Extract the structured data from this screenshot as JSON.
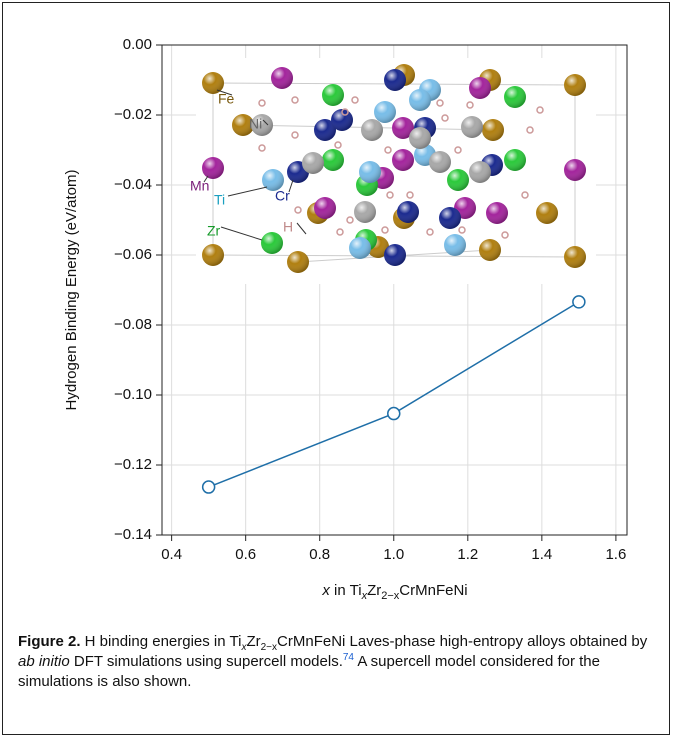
{
  "chart_data": {
    "type": "line",
    "ylabel": "Hydrogen Binding Energy (eV/atom)",
    "xlabel_parts": [
      "x",
      " in Ti",
      "x",
      "Zr",
      "2−x",
      "CrMnFeNi"
    ],
    "x": [
      0.5,
      1.0,
      1.5
    ],
    "series": [
      {
        "color": "#1f6fa8",
        "values": [
          -0.1263,
          -0.1053,
          -0.0734
        ]
      }
    ],
    "xlim": [
      0.374,
      1.63
    ],
    "ylim": [
      -0.14,
      0.0
    ],
    "xticks": [
      0.4,
      0.6,
      0.8,
      {
        "value": 1.0,
        "label": "1.0"
      },
      1.2,
      1.4,
      1.6
    ],
    "yticks": [
      {
        "value": -0.14,
        "label": "−0.14"
      },
      {
        "value": -0.12,
        "label": "−0.12"
      },
      {
        "value": -0.1,
        "label": "−0.10"
      },
      {
        "value": -0.08,
        "label": "−0.08"
      },
      {
        "value": -0.06,
        "label": "−0.06"
      },
      {
        "value": -0.04,
        "label": "−0.04"
      },
      {
        "value": -0.02,
        "label": "−0.02"
      },
      {
        "value": 0.0,
        "label": "0.00"
      }
    ],
    "grid": true,
    "annotations": [
      "Fe",
      "Ni",
      "Mn",
      "Cr",
      "Ti",
      "Zr",
      "H"
    ]
  },
  "caption": {
    "label": "Figure 2.",
    "parts": [
      "  H binding energies in Ti",
      "x",
      "Zr",
      "2−x",
      "CrMnFeNi Laves-phase high-entropy alloys obtained by ",
      "ab initio",
      " DFT simulations using supercell models.",
      "74",
      " A supercell model considered for the simulations is also shown."
    ]
  }
}
